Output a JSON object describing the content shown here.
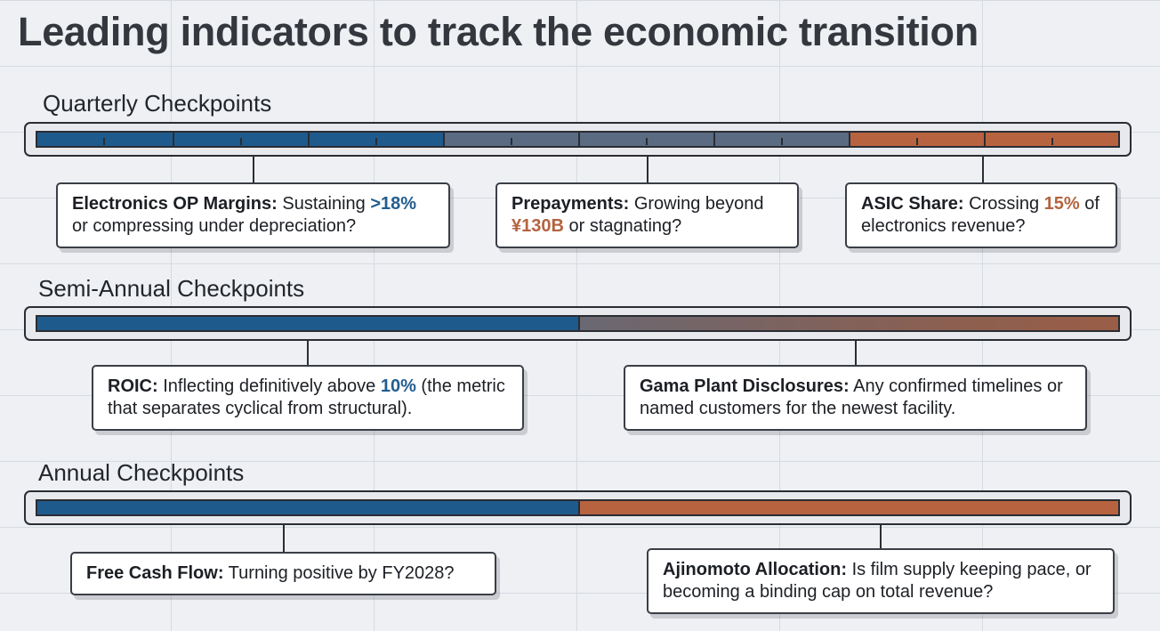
{
  "title": "Leading indicators to track the economic transition",
  "colors": {
    "blue": "#1f5a8c",
    "slate": "#5a6b82",
    "orange": "#b8633f"
  },
  "sections": {
    "quarterly": {
      "label": "Quarterly Checkpoints",
      "cards": [
        {
          "term": "Electronics OP Margins:",
          "pre": " Sustaining ",
          "highlight": ">18%",
          "post": " or compressing under depreciation?"
        },
        {
          "term": "Prepayments:",
          "pre": " Growing beyond ",
          "highlight": "¥130B",
          "post": " or stagnating?"
        },
        {
          "term": "ASIC Share:",
          "pre": " Crossing ",
          "highlight": "15%",
          "post": " of electronics revenue?"
        }
      ]
    },
    "semiannual": {
      "label": "Semi-Annual Checkpoints",
      "cards": [
        {
          "term": "ROIC:",
          "pre": " Inflecting definitively above ",
          "highlight": "10%",
          "post": " (the metric that separates cyclical from structural)."
        },
        {
          "term": "Gama Plant Disclosures:",
          "text": " Any confirmed timelines or named customers for the newest facility."
        }
      ]
    },
    "annual": {
      "label": "Annual Checkpoints",
      "cards": [
        {
          "term": "Free Cash Flow:",
          "text": " Turning positive by FY2028?"
        },
        {
          "term": "Ajinomoto Allocation:",
          "text": " Is film supply keeping pace, or becoming a binding cap on total revenue?"
        }
      ]
    }
  }
}
